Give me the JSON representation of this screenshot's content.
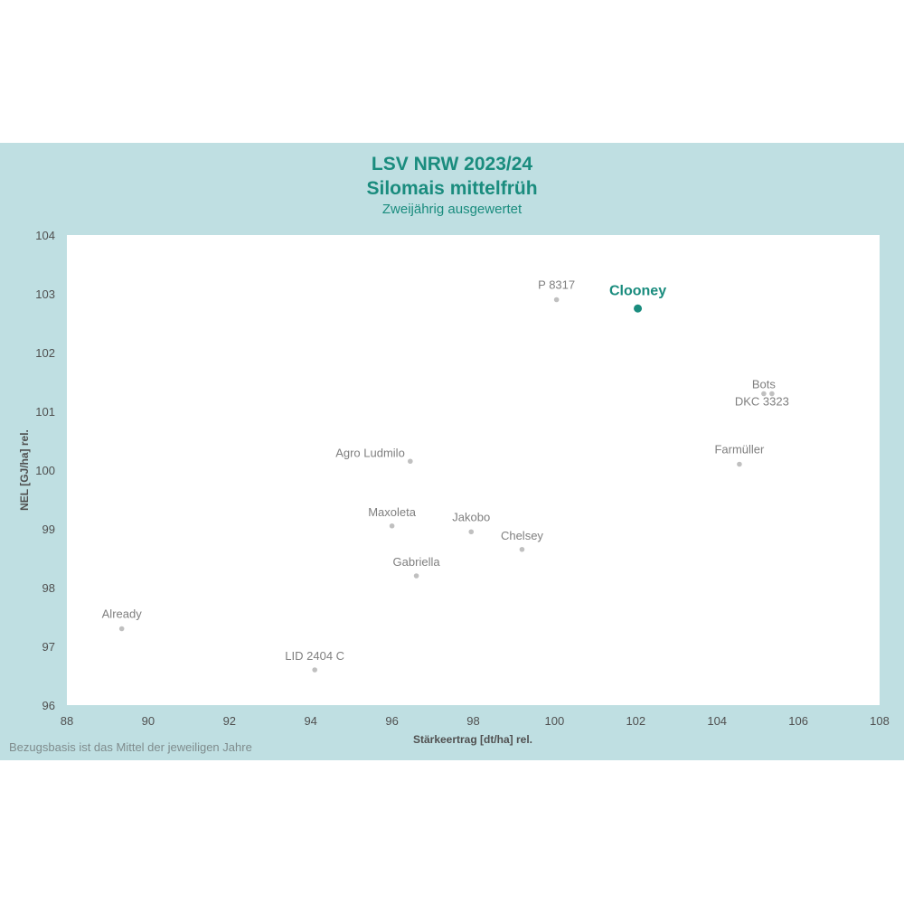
{
  "chart_data": {
    "type": "scatter",
    "title": "LSV NRW 2023/24",
    "subtitle": "Silomais mittelfrüh",
    "subtitle2": "Zweijährig ausgewertet",
    "xlabel": "Stärkeertrag [dt/ha] rel.",
    "ylabel": "NEL [GJ/ha] rel.",
    "footnote": "Bezugsbasis ist das Mittel der jeweiligen  Jahre",
    "xlim": [
      88,
      108
    ],
    "ylim": [
      96,
      104
    ],
    "xticks": [
      "88",
      "90",
      "92",
      "94",
      "96",
      "98",
      "100",
      "102",
      "104",
      "106",
      "108"
    ],
    "yticks": [
      "96",
      "97",
      "98",
      "99",
      "100",
      "101",
      "102",
      "103",
      "104"
    ],
    "grid": false,
    "colors": {
      "highlight": "#1a8c7e",
      "points": "#c0c0c0",
      "background": "#bfdfe2"
    },
    "points": [
      {
        "label": "Clooney",
        "x": 102.05,
        "y": 102.75,
        "highlight": true
      },
      {
        "label": "P 8317",
        "x": 100.05,
        "y": 102.9
      },
      {
        "label": "Bots",
        "x": 105.15,
        "y": 101.3
      },
      {
        "label": "DKC 3323",
        "x": 105.35,
        "y": 101.3
      },
      {
        "label": "Farmüller",
        "x": 104.55,
        "y": 100.1
      },
      {
        "label": "Agro Ludmilo",
        "x": 96.45,
        "y": 100.15
      },
      {
        "label": "Maxoleta",
        "x": 96.0,
        "y": 99.05
      },
      {
        "label": "Jakobo",
        "x": 97.95,
        "y": 98.95
      },
      {
        "label": "Chelsey",
        "x": 99.2,
        "y": 98.65
      },
      {
        "label": "Gabriella",
        "x": 96.6,
        "y": 98.2
      },
      {
        "label": "Already",
        "x": 89.35,
        "y": 97.3
      },
      {
        "label": "LID 2404 C",
        "x": 94.1,
        "y": 96.6
      }
    ]
  }
}
